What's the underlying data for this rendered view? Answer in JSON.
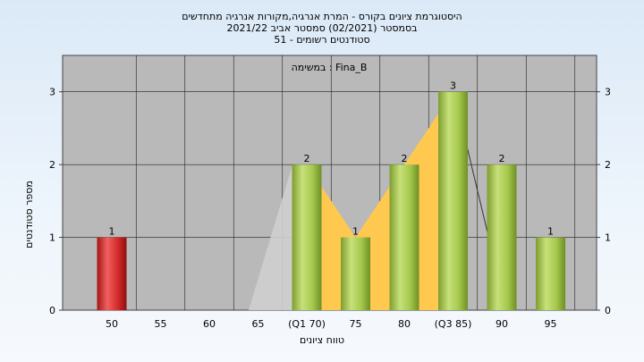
{
  "chart_data": {
    "type": "bar",
    "title_lines": [
      "היסטוגרמת ציונים בקורס - המרת אנרגיה,מקורות אנרגיה מתחדשים",
      "בסמסטר  (02/2021)  סמסטר אביב 2021/22",
      "סטודנטים רשומים - 51"
    ],
    "legend": "במשימה : Fina_B",
    "xlabel": "טווח ציונים",
    "ylabel": "מספר סטודנטים",
    "categories": [
      "50",
      "55",
      "60",
      "65",
      "(Q1 70)",
      "75",
      "80",
      "(Q3 85)",
      "90",
      "95"
    ],
    "values": [
      1,
      0,
      0,
      0,
      2,
      1,
      2,
      3,
      2,
      1
    ],
    "data_labels": [
      "1",
      "",
      "",
      "",
      "2",
      "1",
      "2",
      "3",
      "2",
      "1"
    ],
    "bar_colors": [
      "#d42a2a",
      "",
      "",
      "",
      "#9cc44a",
      "#9cc44a",
      "#9cc44a",
      "#9cc44a",
      "#9cc44a",
      "#9cc44a"
    ],
    "ylim": [
      0,
      3.5
    ],
    "yticks": [
      "0",
      "1",
      "2",
      "3"
    ],
    "quartile_band_color": "#ffc84f",
    "grid": true
  }
}
